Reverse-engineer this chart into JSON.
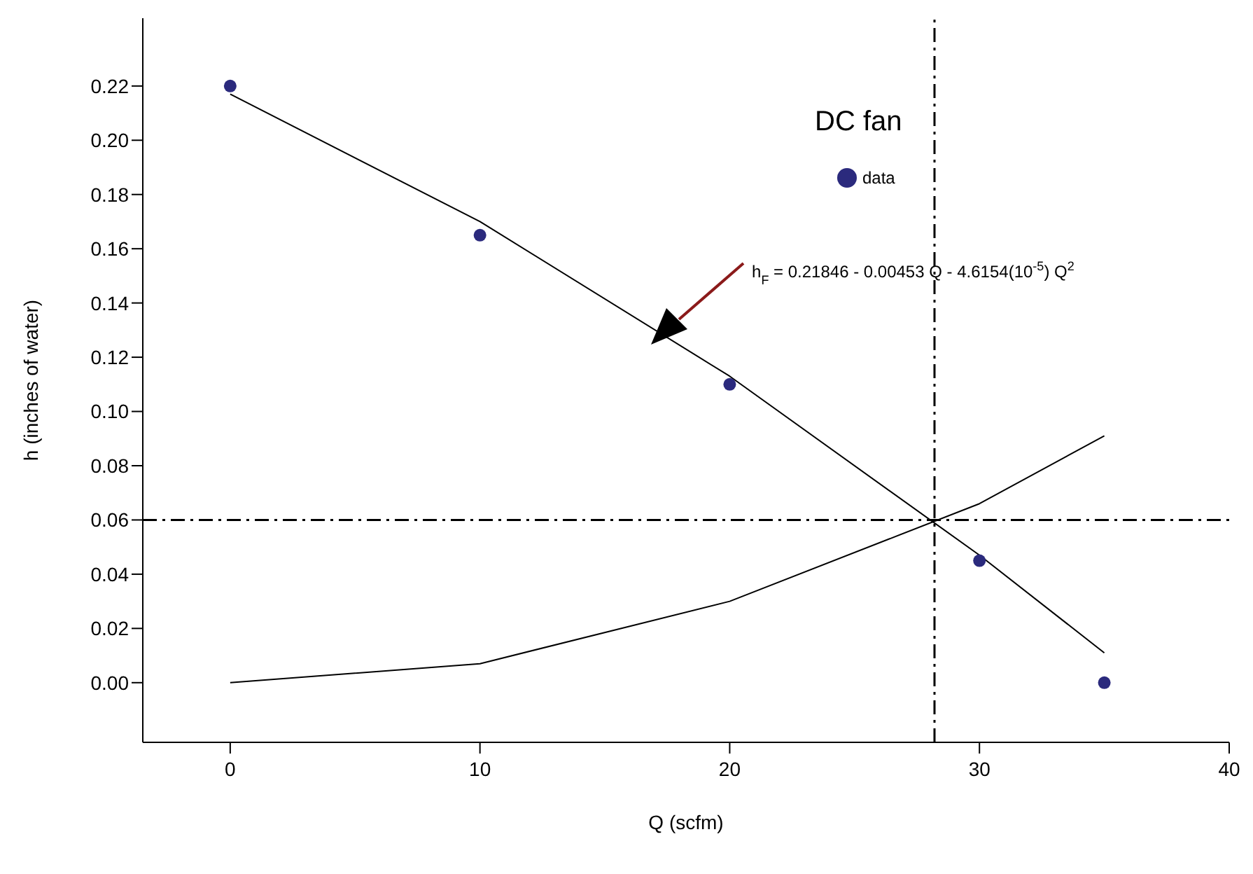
{
  "chart_data": {
    "type": "scatter",
    "title": "DC fan",
    "xlabel": "Q (scfm)",
    "ylabel": "h (inches of water)",
    "xlim": [
      -3.5,
      40
    ],
    "xticks": [
      0,
      10,
      20,
      30,
      40
    ],
    "ylim": [
      -0.022,
      0.245
    ],
    "yticks": [
      {
        "value": 0,
        "label": "0.00"
      },
      {
        "value": 0.02,
        "label": "0.02"
      },
      {
        "value": 0.04,
        "label": "0.04"
      },
      {
        "value": 0.06,
        "label": "0.06"
      },
      {
        "value": 0.08,
        "label": "0.08"
      },
      {
        "value": 0.1,
        "label": "0.10"
      },
      {
        "value": 0.12,
        "label": "0.12"
      },
      {
        "value": 0.14,
        "label": "0.14"
      },
      {
        "value": 0.16,
        "label": "0.16"
      },
      {
        "value": 0.18,
        "label": "0.18"
      },
      {
        "value": 0.2,
        "label": "0.20"
      },
      {
        "value": 0.22,
        "label": "0.22"
      }
    ],
    "grid": false,
    "legend": "top right",
    "series": [
      {
        "name": "data",
        "color": "#2b2a7d",
        "marker": "circle",
        "x": [
          0,
          10,
          20,
          30,
          35
        ],
        "values": [
          0.22,
          0.165,
          0.11,
          0.045,
          0.0
        ]
      },
      {
        "type": "line",
        "color": "#000000",
        "marker": "none",
        "x": [
          0,
          10,
          20,
          30,
          35
        ],
        "values": [
          0.217,
          0.17,
          0.113,
          0.047,
          0.011
        ]
      },
      {
        "type": "line",
        "color": "#000000",
        "marker": "none",
        "x": [
          0,
          10,
          20,
          30,
          35
        ],
        "values": [
          0,
          0.007,
          0.03,
          0.066,
          0.091
        ]
      }
    ],
    "ref_lines": [
      {
        "axis": "x",
        "value": 28.2,
        "color": "#000000",
        "line_style": "dashed"
      },
      {
        "axis": "y",
        "value": 0.06,
        "color": "#000000",
        "line_style": "dashed"
      }
    ],
    "annotations": [
      "h$_{F}$ = 0.21846 - 0.00453 Q - 4.6154(10$^{-5}$) Q$^{2}$"
    ]
  }
}
